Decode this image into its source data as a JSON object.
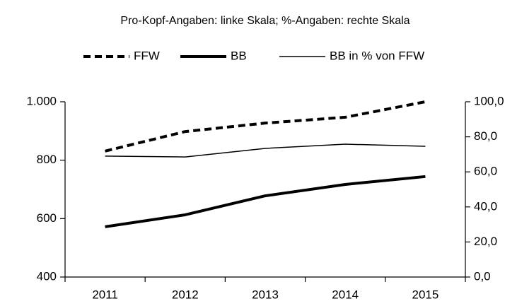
{
  "chart_data": {
    "type": "line",
    "title": "Pro-Kopf-Angaben: linke Skala; %-Angaben: rechte Skala",
    "categories": [
      "2011",
      "2012",
      "2013",
      "2014",
      "2015"
    ],
    "series": [
      {
        "name": "FFW",
        "color": "#000000",
        "style": "dashed",
        "width": 4,
        "values": [
          831,
          898,
          927,
          947,
          1000
        ]
      },
      {
        "name": "BB",
        "color": "#000000",
        "style": "solid",
        "width": 4,
        "values": [
          572,
          613,
          678,
          717,
          744
        ]
      },
      {
        "name": "BB in % von FFW",
        "color": "#000000",
        "style": "solid",
        "width": 1.5,
        "axis": "y2",
        "values": [
          69.0,
          68.5,
          73.4,
          75.8,
          74.6
        ]
      }
    ],
    "ylim": [
      400,
      1000
    ],
    "yticks": [
      400,
      600,
      800,
      {
        "value": 1000,
        "label": "1.000"
      }
    ],
    "y2lim": [
      0,
      100
    ],
    "y2ticks": [
      {
        "value": 0,
        "label": "0,0"
      },
      {
        "value": 20,
        "label": "20,0"
      },
      {
        "value": 40,
        "label": "40,0"
      },
      {
        "value": 60,
        "label": "60,0"
      },
      {
        "value": 80,
        "label": "80,0"
      },
      {
        "value": 100,
        "label": "100,0"
      }
    ],
    "grid": false,
    "legend": "top"
  }
}
